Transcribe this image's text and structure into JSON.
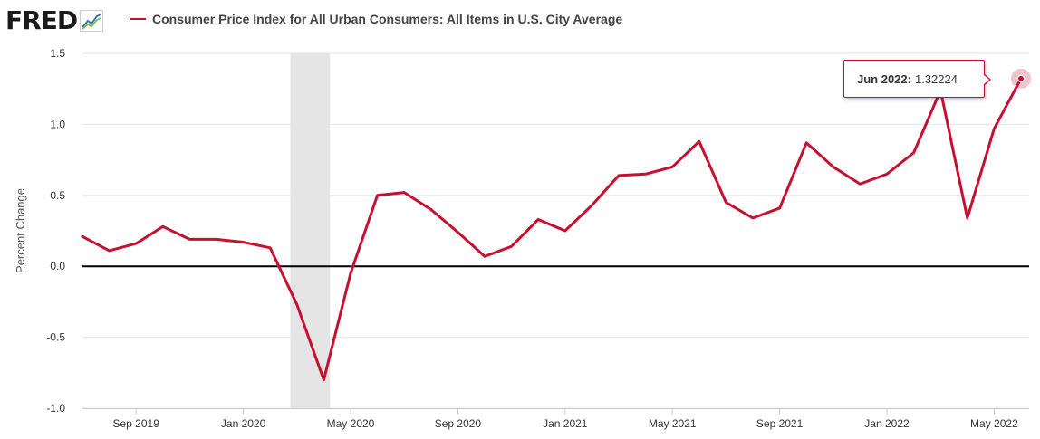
{
  "header": {
    "logo_text": "FRED",
    "series_title": "Consumer Price Index for All Urban Consumers: All Items in U.S. City Average"
  },
  "colors": {
    "series": "#c8102e",
    "recession": "#e5e5e5",
    "zero_line": "#000000",
    "grid": "#e6e6e6"
  },
  "tooltip": {
    "date": "Jun 2022:",
    "value": "1.32224"
  },
  "chart_data": {
    "type": "line",
    "title": "Consumer Price Index for All Urban Consumers: All Items in U.S. City Average",
    "ylabel": "Percent Change",
    "xlabel": "",
    "ylim": [
      -1.0,
      1.5
    ],
    "yticks": [
      "1.5",
      "1.0",
      "0.5",
      "0.0",
      "-0.5",
      "-1.0"
    ],
    "xticks": [
      "Sep 2019",
      "Jan 2020",
      "May 2020",
      "Sep 2020",
      "Jan 2021",
      "May 2021",
      "Sep 2021",
      "Jan 2022",
      "May 2022"
    ],
    "grid": "horizontal",
    "recession_shading": {
      "start": "2020-03",
      "end": "2020-04"
    },
    "x": [
      "2019-07",
      "2019-08",
      "2019-09",
      "2019-10",
      "2019-11",
      "2019-12",
      "2020-01",
      "2020-02",
      "2020-03",
      "2020-04",
      "2020-05",
      "2020-06",
      "2020-07",
      "2020-08",
      "2020-09",
      "2020-10",
      "2020-11",
      "2020-12",
      "2021-01",
      "2021-02",
      "2021-03",
      "2021-04",
      "2021-05",
      "2021-06",
      "2021-07",
      "2021-08",
      "2021-09",
      "2021-10",
      "2021-11",
      "2021-12",
      "2022-01",
      "2022-02",
      "2022-03",
      "2022-04",
      "2022-05",
      "2022-06"
    ],
    "series": [
      {
        "name": "Consumer Price Index for All Urban Consumers: All Items in U.S. City Average",
        "values": [
          0.21,
          0.11,
          0.16,
          0.28,
          0.19,
          0.19,
          0.17,
          0.13,
          -0.27,
          -0.8,
          -0.05,
          0.5,
          0.52,
          0.4,
          0.24,
          0.07,
          0.14,
          0.33,
          0.25,
          0.43,
          0.64,
          0.65,
          0.7,
          0.88,
          0.45,
          0.34,
          0.41,
          0.87,
          0.7,
          0.58,
          0.65,
          0.8,
          1.24,
          0.34,
          0.97,
          1.32224
        ]
      }
    ]
  }
}
